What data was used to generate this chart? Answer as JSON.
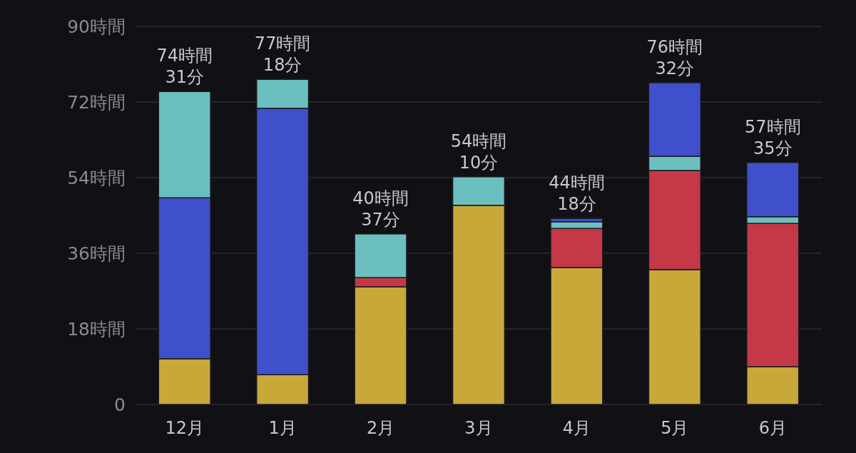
{
  "chart_data": {
    "type": "bar",
    "stacked": true,
    "categories": [
      "12月",
      "1月",
      "2月",
      "3月",
      "4月",
      "5月",
      "6月"
    ],
    "series": [
      {
        "color": "#c9a83a",
        "values": [
          10.9,
          7.1,
          28.0,
          47.4,
          32.6,
          32.1,
          9.0
        ]
      },
      {
        "color": "#c43848",
        "values": [
          null,
          null,
          2.2,
          null,
          9.3,
          23.6,
          34.1
        ]
      },
      {
        "color": "#4050cc",
        "values": [
          38.3,
          63.4,
          null,
          null,
          null,
          null,
          null
        ]
      },
      {
        "color": "#6bbfbf",
        "values": [
          25.3,
          6.9,
          10.4,
          6.8,
          1.6,
          3.4,
          1.6
        ]
      },
      {
        "color": "#4050cc",
        "values": [
          null,
          null,
          null,
          null,
          0.8,
          17.5,
          12.9
        ]
      }
    ],
    "totals": [
      "74時間\n31分",
      "77時間\n18分",
      "40時間\n37分",
      "54時間\n10分",
      "44時間\n18分",
      "76時間\n32分",
      "57時間\n35分"
    ],
    "ylim": [
      0,
      90
    ],
    "yticks": [
      0,
      {
        "value": 18,
        "label": "18時間"
      },
      {
        "value": 36,
        "label": "36時間"
      },
      {
        "value": 54,
        "label": "54時間"
      },
      {
        "value": 72,
        "label": "72時間"
      },
      {
        "value": 90,
        "label": "90時間"
      }
    ],
    "grid": "y"
  }
}
